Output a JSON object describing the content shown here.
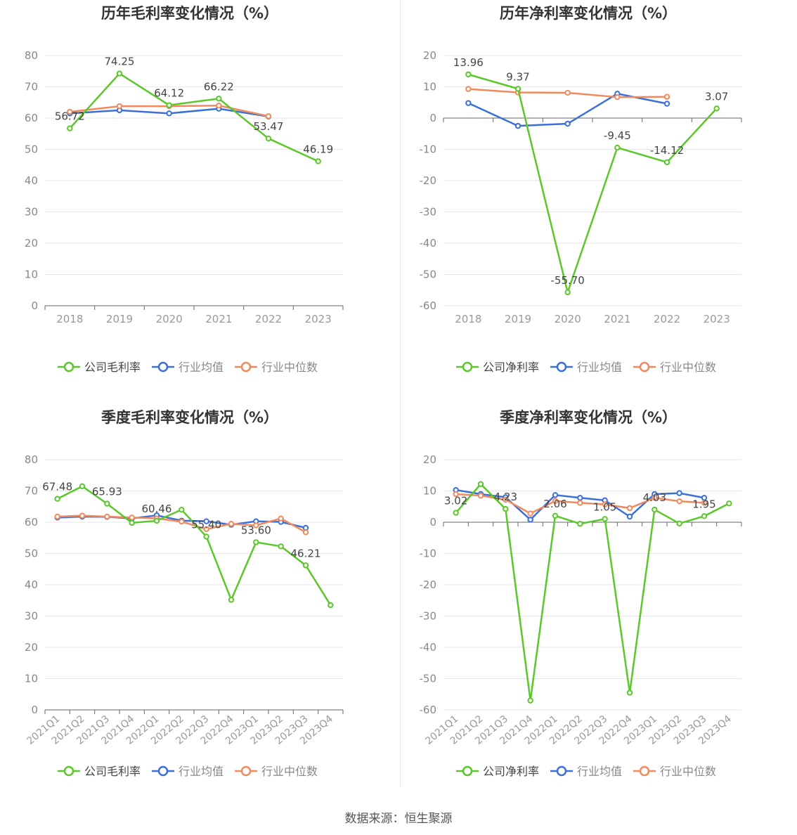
{
  "source_text": "数据来源：恒生聚源",
  "colors": {
    "company": "#5bc72a",
    "avg": "#3b6fd9",
    "median": "#f08a5d"
  },
  "chart_data": [
    {
      "type": "line",
      "title": "历年毛利率变化情况（%）",
      "categories": [
        "2018",
        "2019",
        "2020",
        "2021",
        "2022",
        "2023"
      ],
      "ylim": [
        0,
        80
      ],
      "yticks": [
        0,
        10,
        20,
        30,
        40,
        50,
        60,
        70,
        80
      ],
      "series": [
        {
          "name": "公司毛利率",
          "values": [
            56.72,
            74.25,
            64.12,
            66.22,
            53.47,
            46.19
          ],
          "labels": [
            "56.72",
            "74.25",
            "64.12",
            "66.22",
            "53.47",
            "46.19"
          ]
        },
        {
          "name": "行业均值",
          "values": [
            61.5,
            62.5,
            61.5,
            63.0,
            60.5,
            null
          ]
        },
        {
          "name": "行业中位数",
          "values": [
            62.0,
            63.8,
            63.8,
            64.0,
            60.6,
            null
          ]
        }
      ],
      "legend": [
        "公司毛利率",
        "行业均值",
        "行业中位数"
      ]
    },
    {
      "type": "line",
      "title": "历年净利率变化情况（%）",
      "categories": [
        "2018",
        "2019",
        "2020",
        "2021",
        "2022",
        "2023"
      ],
      "ylim": [
        -60,
        20
      ],
      "yticks": [
        -60,
        -50,
        -40,
        -30,
        -20,
        -10,
        0,
        10,
        20
      ],
      "series": [
        {
          "name": "公司净利率",
          "values": [
            13.96,
            9.37,
            -55.7,
            -9.45,
            -14.12,
            3.07
          ],
          "labels": [
            "13.96",
            "9.37",
            "-55.70",
            "-9.45",
            "-14.12",
            "3.07"
          ]
        },
        {
          "name": "行业均值",
          "values": [
            4.8,
            -2.5,
            -1.8,
            7.8,
            4.6,
            null
          ]
        },
        {
          "name": "行业中位数",
          "values": [
            9.3,
            8.2,
            8.1,
            6.7,
            6.8,
            null
          ]
        }
      ],
      "legend": [
        "公司净利率",
        "行业均值",
        "行业中位数"
      ]
    },
    {
      "type": "line",
      "title": "季度毛利率变化情况（%）",
      "categories": [
        "2021Q1",
        "2021Q2",
        "2021Q3",
        "2021Q4",
        "2022Q1",
        "2022Q2",
        "2022Q3",
        "2022Q4",
        "2023Q1",
        "2023Q2",
        "2023Q3",
        "2023Q4"
      ],
      "ylim": [
        0,
        80
      ],
      "yticks": [
        0,
        10,
        20,
        30,
        40,
        50,
        60,
        70,
        80
      ],
      "series": [
        {
          "name": "公司毛利率",
          "values": [
            67.48,
            71.5,
            65.93,
            59.8,
            60.46,
            64.0,
            55.4,
            35.2,
            53.6,
            52.3,
            46.21,
            33.5
          ],
          "labels": [
            "67.48",
            "",
            "65.93",
            "",
            "60.46",
            "",
            "55.40",
            "",
            "53.60",
            "",
            "46.21",
            ""
          ]
        },
        {
          "name": "行业均值",
          "values": [
            61.5,
            61.8,
            61.7,
            61.2,
            62.2,
            60.5,
            60.3,
            59.2,
            60.3,
            60.1,
            58.2,
            null
          ]
        },
        {
          "name": "行业中位数",
          "values": [
            61.8,
            62.1,
            61.8,
            61.5,
            61.2,
            60.2,
            57.8,
            59.5,
            59.0,
            61.2,
            56.8,
            null
          ]
        }
      ],
      "legend": [
        "公司毛利率",
        "行业均值",
        "行业中位数"
      ]
    },
    {
      "type": "line",
      "title": "季度净利率变化情况（%）",
      "categories": [
        "2021Q1",
        "2021Q2",
        "2021Q3",
        "2021Q4",
        "2022Q1",
        "2022Q2",
        "2022Q3",
        "2022Q4",
        "2023Q1",
        "2023Q2",
        "2023Q3",
        "2023Q4"
      ],
      "ylim": [
        -60,
        20
      ],
      "yticks": [
        -60,
        -50,
        -40,
        -30,
        -20,
        -10,
        0,
        10,
        20
      ],
      "series": [
        {
          "name": "公司净利率",
          "values": [
            3.02,
            12.2,
            4.23,
            -57.0,
            2.06,
            -0.5,
            1.05,
            -54.5,
            4.03,
            -0.4,
            1.95,
            6.0
          ],
          "labels": [
            "3.02",
            "",
            "4.23",
            "",
            "2.06",
            "",
            "1.05",
            "",
            "4.03",
            "",
            "1.95",
            ""
          ]
        },
        {
          "name": "行业均值",
          "values": [
            10.3,
            9.0,
            8.0,
            0.8,
            8.7,
            7.8,
            7.0,
            1.8,
            9.0,
            9.3,
            7.8,
            null
          ]
        },
        {
          "name": "行业中位数",
          "values": [
            9.0,
            8.5,
            7.2,
            2.8,
            6.8,
            6.2,
            5.7,
            4.5,
            7.8,
            6.7,
            6.2,
            null
          ]
        }
      ],
      "legend": [
        "公司净利率",
        "行业均值",
        "行业中位数"
      ]
    }
  ]
}
